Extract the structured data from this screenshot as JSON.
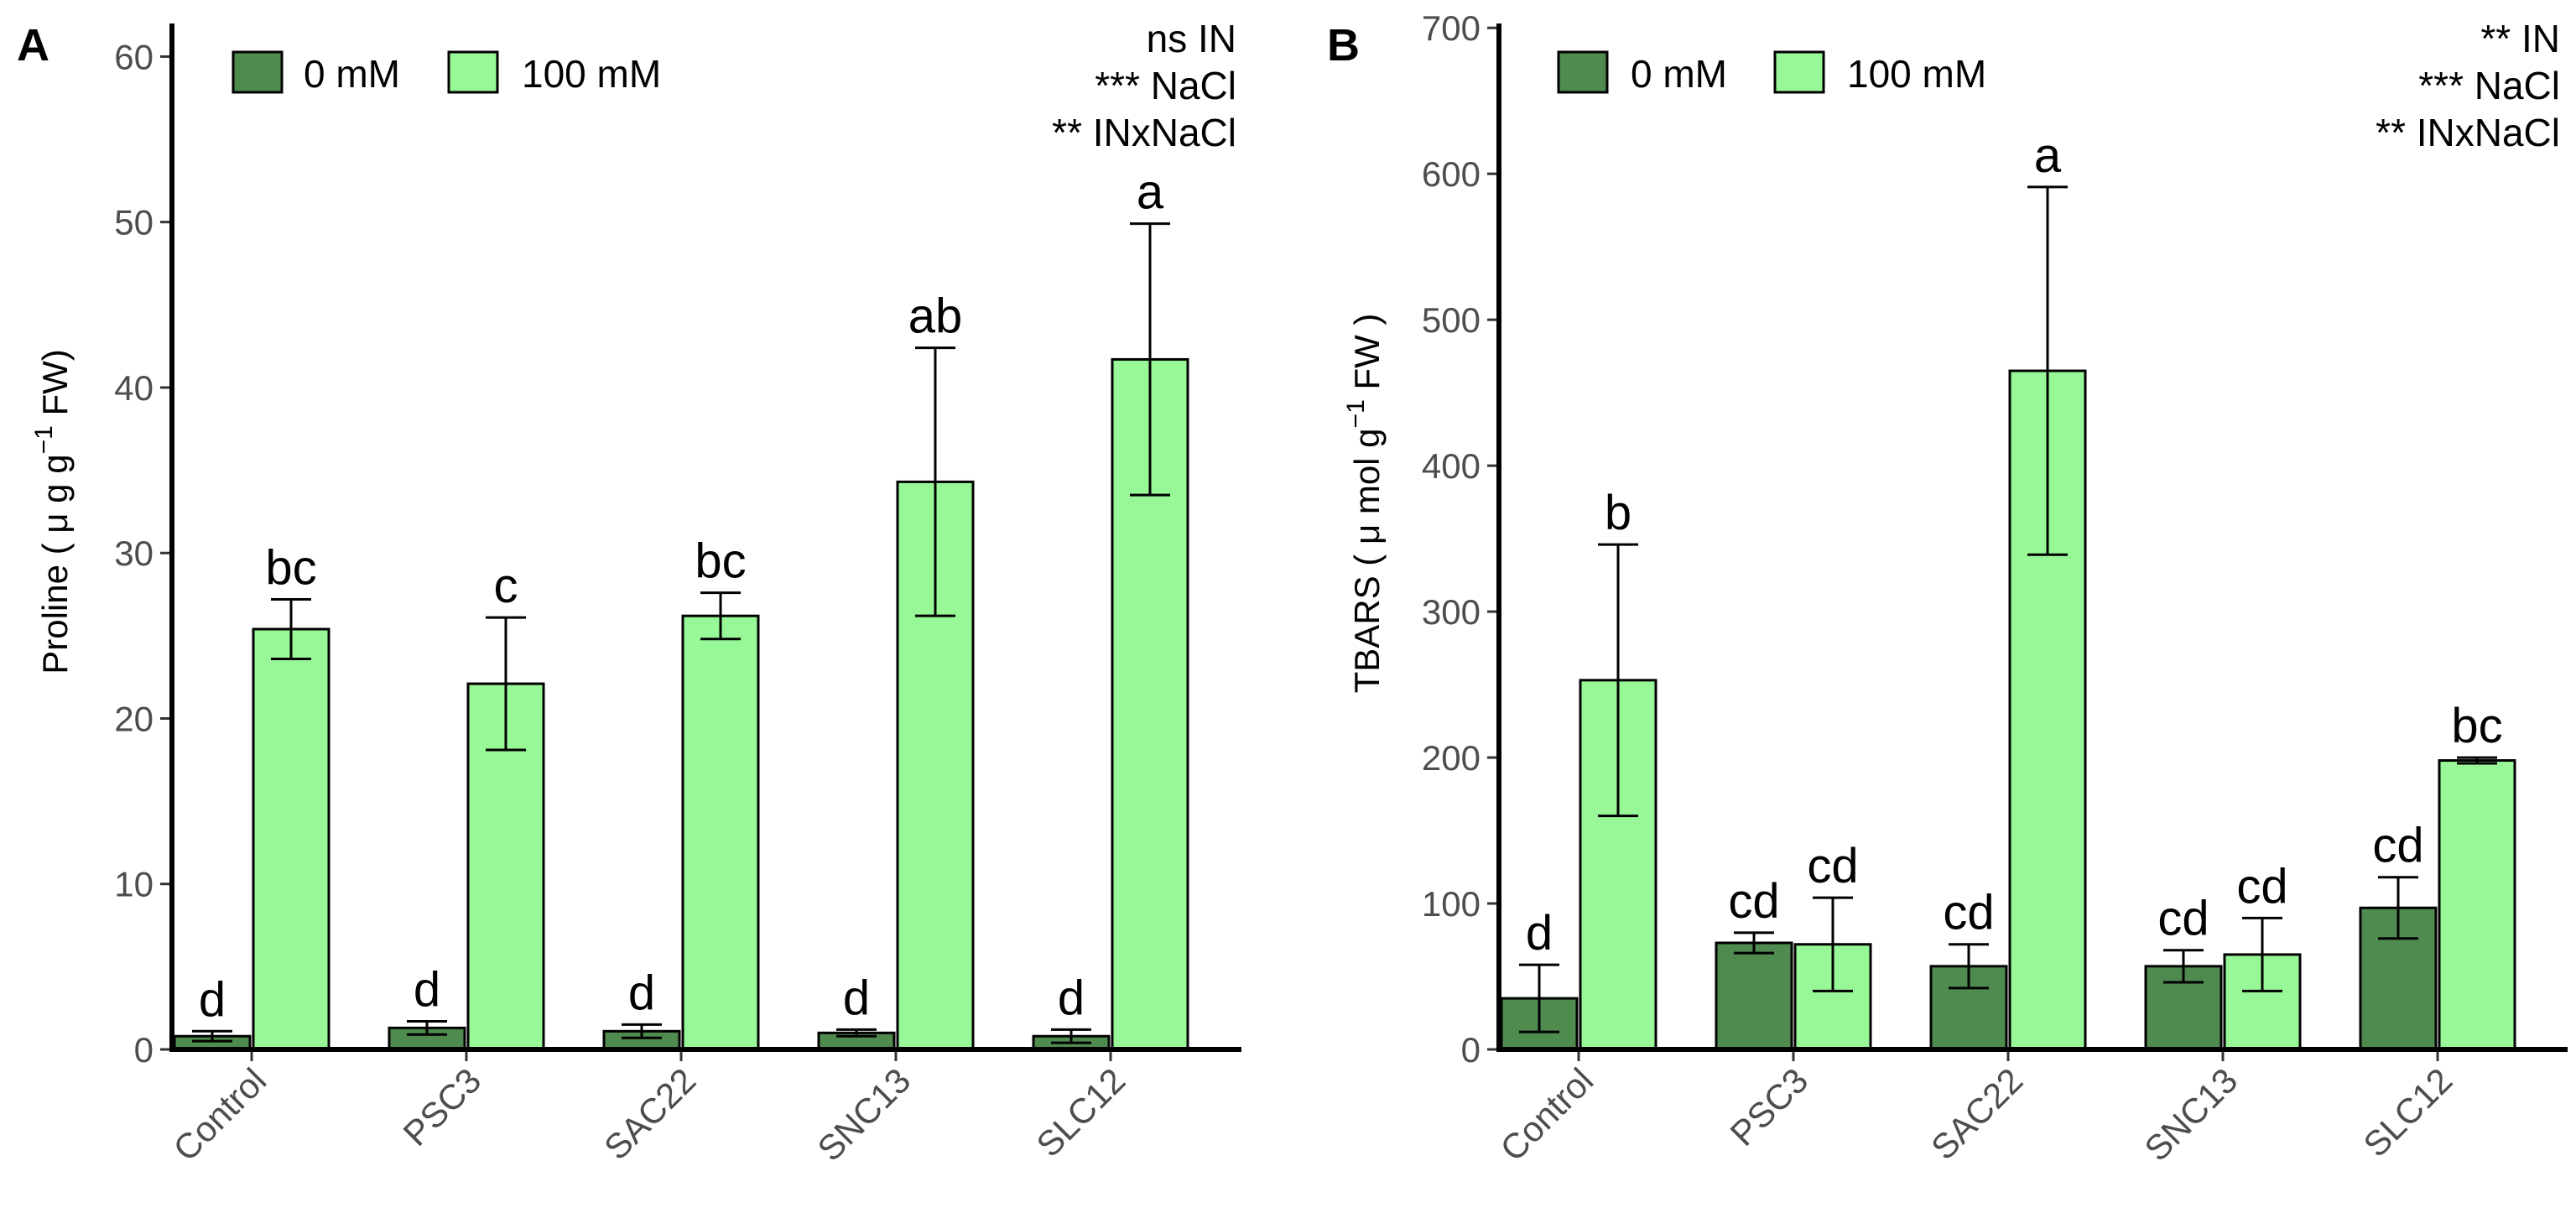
{
  "colors": {
    "mm0": "#4f8a4f",
    "mm100": "#98f898",
    "axis": "#000000",
    "tick_text": "#4d4d4d"
  },
  "legend": {
    "labels": [
      "0 mM",
      "100 mM"
    ]
  },
  "chart_data": [
    {
      "panel": "A",
      "type": "bar",
      "ylabel_main": "Proline ( μ g g",
      "ylabel_sup": "−1",
      "ylabel_end": " FW)",
      "ylim": [
        0,
        62
      ],
      "yticks": [
        0,
        10,
        20,
        30,
        40,
        50,
        60
      ],
      "categories": [
        "Control",
        "PSC3",
        "SAC22",
        "SNC13",
        "SLC12"
      ],
      "series": [
        {
          "name": "0 mM",
          "values": [
            0.8,
            1.3,
            1.1,
            1.0,
            0.8
          ],
          "errors": [
            0.3,
            0.4,
            0.4,
            0.2,
            0.4
          ],
          "letters": [
            "d",
            "d",
            "d",
            "d",
            "d"
          ]
        },
        {
          "name": "100 mM",
          "values": [
            25.4,
            22.1,
            26.2,
            34.3,
            41.7
          ],
          "errors": [
            1.8,
            4.0,
            1.4,
            8.1,
            8.2
          ],
          "letters": [
            "bc",
            "c",
            "bc",
            "ab",
            "a"
          ]
        }
      ],
      "stats": [
        "ns IN",
        "*** NaCl",
        "** INxNaCl"
      ]
    },
    {
      "panel": "B",
      "type": "bar",
      "ylabel_main": "TBARS ( μ mol g",
      "ylabel_sup": "−1",
      "ylabel_end": " FW )",
      "ylim": [
        0,
        703
      ],
      "yticks": [
        0,
        100,
        200,
        300,
        400,
        500,
        600,
        700
      ],
      "categories": [
        "Control",
        "PSC3",
        "SAC22",
        "SNC13",
        "SLC12"
      ],
      "series": [
        {
          "name": "0 mM",
          "values": [
            35,
            73,
            57,
            57,
            97
          ],
          "errors": [
            23,
            7,
            15,
            11,
            21
          ],
          "letters": [
            "d",
            "cd",
            "cd",
            "cd",
            "cd"
          ]
        },
        {
          "name": "100 mM",
          "values": [
            253,
            72,
            465,
            65,
            198
          ],
          "errors": [
            93,
            32,
            126,
            25,
            2
          ],
          "letters": [
            "b",
            "cd",
            "a",
            "cd",
            "bc"
          ]
        }
      ],
      "stats": [
        "** IN",
        "*** NaCl",
        "** INxNaCl"
      ]
    }
  ]
}
